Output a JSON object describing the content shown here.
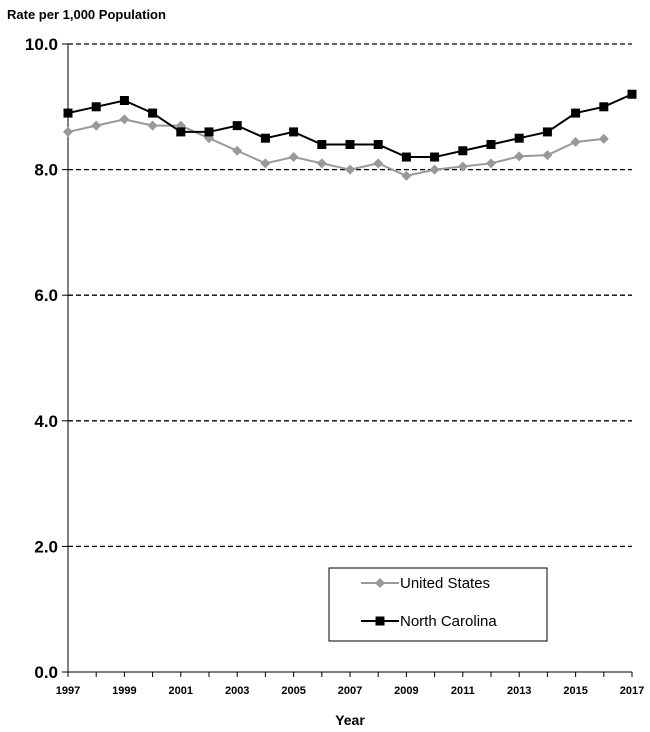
{
  "chart_data": {
    "type": "line",
    "ylabel": "Rate per 1,000 Population",
    "xlabel": "Year",
    "ylim": [
      0,
      10
    ],
    "xlim": [
      1997,
      2017
    ],
    "y_ticks": [
      "0.0",
      "2.0",
      "4.0",
      "6.0",
      "8.0",
      "10.0"
    ],
    "x_ticks": [
      "1997",
      "1999",
      "2001",
      "2003",
      "2005",
      "2007",
      "2009",
      "2011",
      "2013",
      "2015",
      "2017"
    ],
    "grid": "horizontal dashed",
    "legend_position": "bottom-right",
    "series": [
      {
        "name": "United States",
        "color": "#999999",
        "marker": "diamond",
        "x": [
          1997,
          1998,
          1999,
          2000,
          2001,
          2002,
          2003,
          2004,
          2005,
          2006,
          2007,
          2008,
          2009,
          2010,
          2011,
          2012,
          2013,
          2014,
          2015,
          2016
        ],
        "values": [
          8.6,
          8.7,
          8.8,
          8.7,
          8.7,
          8.5,
          8.3,
          8.1,
          8.2,
          8.1,
          8.0,
          8.1,
          7.9,
          8.0,
          8.05,
          8.1,
          8.21,
          8.23,
          8.44,
          8.49
        ]
      },
      {
        "name": "North Carolina",
        "color": "#000000",
        "marker": "square",
        "x": [
          1997,
          1998,
          1999,
          2000,
          2001,
          2002,
          2003,
          2004,
          2005,
          2006,
          2007,
          2008,
          2009,
          2010,
          2011,
          2012,
          2013,
          2014,
          2015,
          2016,
          2017
        ],
        "values": [
          8.9,
          9.0,
          9.1,
          8.9,
          8.6,
          8.6,
          8.7,
          8.5,
          8.6,
          8.4,
          8.4,
          8.4,
          8.2,
          8.2,
          8.3,
          8.4,
          8.5,
          8.6,
          8.9,
          9.0,
          9.2
        ]
      }
    ]
  }
}
